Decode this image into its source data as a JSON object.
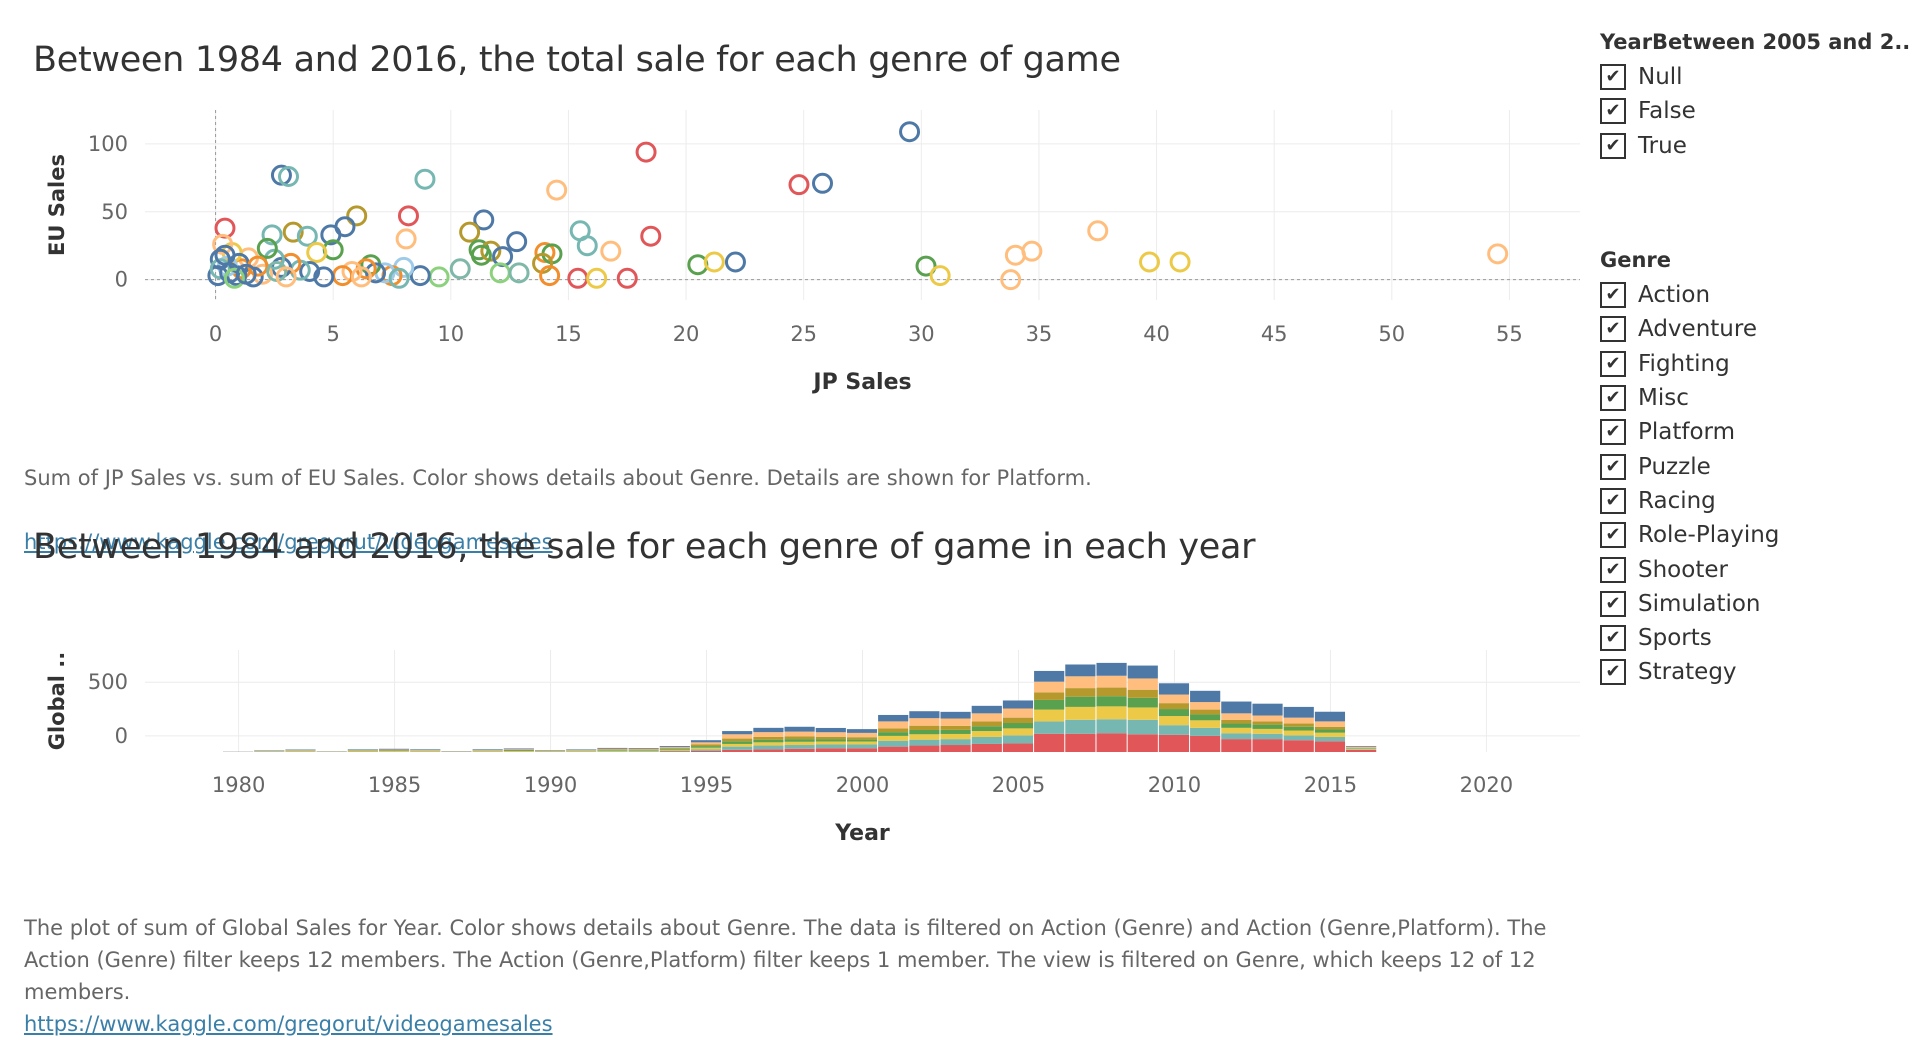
{
  "scatter": {
    "title": "Between 1984 and 2016, the total sale for each genre of game",
    "caption": "Sum of JP Sales vs. sum of EU Sales.  Color shows details about Genre.  Details are shown for Platform.",
    "link": "https://www.kaggle.com/gregorut/videogamesales"
  },
  "bar": {
    "title": "Between 1984 and 2016, the sale for each genre of game in each year",
    "caption": "The plot of sum of Global Sales for Year.  Color shows details about Genre. The data is filtered on Action (Genre) and Action (Genre,Platform). The Action (Genre) filter keeps 12 members. The Action (Genre,Platform) filter keeps 1 member. The view is filtered on Genre, which keeps 12 of 12 members.",
    "link": "https://www.kaggle.com/gregorut/videogamesales"
  },
  "filters": {
    "year": {
      "title": "YearBetween 2005 and 2..",
      "items": [
        "Null",
        "False",
        "True"
      ]
    },
    "genre": {
      "title": "Genre",
      "items": [
        "Action",
        "Adventure",
        "Fighting",
        "Misc",
        "Platform",
        "Puzzle",
        "Racing",
        "Role-Playing",
        "Shooter",
        "Simulation",
        "Sports",
        "Strategy"
      ]
    }
  },
  "colors": {
    "Action": "#e15759",
    "Adventure": "#7fb8a8",
    "Fighting": "#59a14f",
    "Misc": "#edc948",
    "Platform": "#4e79a7",
    "Puzzle": "#a0cbe8",
    "Racing": "#f28e2b",
    "Role-Playing": "#ffbe7d",
    "Shooter": "#3b8f3b",
    "Simulation": "#b6992d",
    "Sports": "#76b7b2",
    "Strategy": "#8cd17d"
  },
  "chart_data": [
    {
      "type": "scatter",
      "xlabel": "JP Sales",
      "ylabel": "EU Sales",
      "xlim": [
        -3,
        58
      ],
      "ylim": [
        -15,
        125
      ],
      "xticks": [
        0,
        5,
        10,
        15,
        20,
        25,
        30,
        35,
        40,
        45,
        50,
        55
      ],
      "yticks": [
        0,
        50,
        100
      ],
      "points": [
        {
          "x": 29.5,
          "y": 109,
          "g": "Platform"
        },
        {
          "x": 18.3,
          "y": 94,
          "g": "Action"
        },
        {
          "x": 24.8,
          "y": 70,
          "g": "Action"
        },
        {
          "x": 25.8,
          "y": 71,
          "g": "Platform"
        },
        {
          "x": 2.8,
          "y": 77,
          "g": "Platform"
        },
        {
          "x": 3.1,
          "y": 76,
          "g": "Sports"
        },
        {
          "x": 8.9,
          "y": 74,
          "g": "Sports"
        },
        {
          "x": 14.5,
          "y": 66,
          "g": "Role-Playing"
        },
        {
          "x": 6.0,
          "y": 47,
          "g": "Simulation"
        },
        {
          "x": 8.2,
          "y": 47,
          "g": "Action"
        },
        {
          "x": 11.4,
          "y": 44,
          "g": "Platform"
        },
        {
          "x": 0.4,
          "y": 38,
          "g": "Action"
        },
        {
          "x": 5.5,
          "y": 39,
          "g": "Platform"
        },
        {
          "x": 4.9,
          "y": 33,
          "g": "Platform"
        },
        {
          "x": 3.3,
          "y": 35,
          "g": "Simulation"
        },
        {
          "x": 2.4,
          "y": 33,
          "g": "Sports"
        },
        {
          "x": 3.9,
          "y": 32,
          "g": "Sports"
        },
        {
          "x": 10.8,
          "y": 35,
          "g": "Simulation"
        },
        {
          "x": 15.5,
          "y": 36,
          "g": "Sports"
        },
        {
          "x": 8.1,
          "y": 30,
          "g": "Role-Playing"
        },
        {
          "x": 18.5,
          "y": 32,
          "g": "Action"
        },
        {
          "x": 37.5,
          "y": 36,
          "g": "Role-Playing"
        },
        {
          "x": 12.8,
          "y": 28,
          "g": "Platform"
        },
        {
          "x": 15.8,
          "y": 25,
          "g": "Sports"
        },
        {
          "x": 16.8,
          "y": 21,
          "g": "Role-Playing"
        },
        {
          "x": 11.2,
          "y": 22,
          "g": "Fighting"
        },
        {
          "x": 11.7,
          "y": 21,
          "g": "Simulation"
        },
        {
          "x": 14.0,
          "y": 20,
          "g": "Racing"
        },
        {
          "x": 14.3,
          "y": 19,
          "g": "Fighting"
        },
        {
          "x": 54.5,
          "y": 19,
          "g": "Role-Playing"
        },
        {
          "x": 34.0,
          "y": 18,
          "g": "Role-Playing"
        },
        {
          "x": 34.7,
          "y": 21,
          "g": "Role-Playing"
        },
        {
          "x": 11.3,
          "y": 18,
          "g": "Fighting"
        },
        {
          "x": 12.2,
          "y": 17,
          "g": "Platform"
        },
        {
          "x": 13.9,
          "y": 12,
          "g": "Simulation"
        },
        {
          "x": 20.5,
          "y": 11,
          "g": "Fighting"
        },
        {
          "x": 21.2,
          "y": 13,
          "g": "Misc"
        },
        {
          "x": 22.1,
          "y": 13,
          "g": "Platform"
        },
        {
          "x": 30.2,
          "y": 10,
          "g": "Fighting"
        },
        {
          "x": 30.8,
          "y": 3,
          "g": "Misc"
        },
        {
          "x": 39.7,
          "y": 13,
          "g": "Misc"
        },
        {
          "x": 41.0,
          "y": 13,
          "g": "Misc"
        },
        {
          "x": 33.8,
          "y": 0,
          "g": "Role-Playing"
        },
        {
          "x": 14.2,
          "y": 3,
          "g": "Racing"
        },
        {
          "x": 15.4,
          "y": 1,
          "g": "Action"
        },
        {
          "x": 16.2,
          "y": 1,
          "g": "Misc"
        },
        {
          "x": 17.5,
          "y": 1,
          "g": "Action"
        },
        {
          "x": 12.1,
          "y": 5,
          "g": "Strategy"
        },
        {
          "x": 12.9,
          "y": 5,
          "g": "Adventure"
        },
        {
          "x": 10.4,
          "y": 8,
          "g": "Adventure"
        },
        {
          "x": 9.5,
          "y": 2,
          "g": "Strategy"
        },
        {
          "x": 8.7,
          "y": 3,
          "g": "Platform"
        },
        {
          "x": 8.0,
          "y": 9,
          "g": "Puzzle"
        },
        {
          "x": 7.5,
          "y": 3,
          "g": "Racing"
        },
        {
          "x": 7.2,
          "y": 5,
          "g": "Puzzle"
        },
        {
          "x": 6.6,
          "y": 11,
          "g": "Fighting"
        },
        {
          "x": 6.8,
          "y": 5,
          "g": "Platform"
        },
        {
          "x": 6.4,
          "y": 8,
          "g": "Racing"
        },
        {
          "x": 5.8,
          "y": 6,
          "g": "Role-Playing"
        },
        {
          "x": 5.4,
          "y": 3,
          "g": "Racing"
        },
        {
          "x": 5.0,
          "y": 22,
          "g": "Fighting"
        },
        {
          "x": 4.6,
          "y": 2,
          "g": "Platform"
        },
        {
          "x": 4.3,
          "y": 20,
          "g": "Misc"
        },
        {
          "x": 4.0,
          "y": 6,
          "g": "Platform"
        },
        {
          "x": 3.6,
          "y": 7,
          "g": "Sports"
        },
        {
          "x": 3.2,
          "y": 12,
          "g": "Racing"
        },
        {
          "x": 2.8,
          "y": 9,
          "g": "Platform"
        },
        {
          "x": 2.5,
          "y": 15,
          "g": "Sports"
        },
        {
          "x": 2.2,
          "y": 23,
          "g": "Fighting"
        },
        {
          "x": 2.0,
          "y": 4,
          "g": "Role-Playing"
        },
        {
          "x": 1.6,
          "y": 2,
          "g": "Platform"
        },
        {
          "x": 1.4,
          "y": 16,
          "g": "Role-Playing"
        },
        {
          "x": 1.1,
          "y": 8,
          "g": "Racing"
        },
        {
          "x": 0.9,
          "y": 3,
          "g": "Platform"
        },
        {
          "x": 0.7,
          "y": 20,
          "g": "Misc"
        },
        {
          "x": 0.5,
          "y": 10,
          "g": "Puzzle"
        },
        {
          "x": 0.3,
          "y": 26,
          "g": "Role-Playing"
        },
        {
          "x": 0.2,
          "y": 15,
          "g": "Platform"
        },
        {
          "x": 0.1,
          "y": 3,
          "g": "Platform"
        },
        {
          "x": 0.2,
          "y": 8,
          "g": "Sports"
        },
        {
          "x": 0.6,
          "y": 5,
          "g": "Platform"
        },
        {
          "x": 1.0,
          "y": 12,
          "g": "Platform"
        },
        {
          "x": 0.4,
          "y": 18,
          "g": "Platform"
        },
        {
          "x": 1.8,
          "y": 10,
          "g": "Racing"
        },
        {
          "x": 2.6,
          "y": 6,
          "g": "Adventure"
        },
        {
          "x": 3.0,
          "y": 2,
          "g": "Role-Playing"
        },
        {
          "x": 0.8,
          "y": 1,
          "g": "Strategy"
        },
        {
          "x": 1.3,
          "y": 4,
          "g": "Platform"
        },
        {
          "x": 7.8,
          "y": 1,
          "g": "Sports"
        },
        {
          "x": 6.2,
          "y": 2,
          "g": "Role-Playing"
        }
      ]
    },
    {
      "type": "bar",
      "stacked": true,
      "xlabel": "Year",
      "ylabel": "Global ..",
      "xlim": [
        1977,
        2023
      ],
      "ylim": [
        -150,
        800
      ],
      "xticks": [
        1980,
        1985,
        1990,
        1995,
        2000,
        2005,
        2010,
        2015,
        2020
      ],
      "yticks": [
        0,
        500
      ],
      "genre_order": [
        "Action",
        "Sports",
        "Misc",
        "Fighting",
        "Simulation",
        "Role-Playing",
        "Platform"
      ],
      "years": [
        1980,
        1981,
        1982,
        1983,
        1984,
        1985,
        1986,
        1987,
        1988,
        1989,
        1990,
        1991,
        1992,
        1993,
        1994,
        1995,
        1996,
        1997,
        1998,
        1999,
        2000,
        2001,
        2002,
        2003,
        2004,
        2005,
        2006,
        2007,
        2008,
        2009,
        2010,
        2011,
        2012,
        2013,
        2014,
        2015,
        2016
      ],
      "series": [
        {
          "name": "Action",
          "values": [
            0,
            1,
            2,
            0,
            0,
            1,
            1,
            1,
            2,
            1,
            0,
            1,
            1,
            2,
            5,
            10,
            20,
            25,
            30,
            35,
            35,
            50,
            60,
            65,
            75,
            80,
            170,
            170,
            175,
            165,
            160,
            150,
            120,
            120,
            110,
            100,
            20
          ]
        },
        {
          "name": "Sports",
          "values": [
            0,
            2,
            3,
            1,
            2,
            2,
            2,
            1,
            2,
            3,
            2,
            3,
            4,
            6,
            8,
            15,
            30,
            35,
            35,
            35,
            35,
            55,
            55,
            55,
            65,
            75,
            115,
            130,
            130,
            135,
            90,
            75,
            55,
            50,
            45,
            40,
            5
          ]
        },
        {
          "name": "Misc",
          "values": [
            1,
            3,
            4,
            1,
            4,
            5,
            4,
            1,
            4,
            5,
            3,
            4,
            7,
            6,
            8,
            15,
            25,
            30,
            30,
            28,
            28,
            45,
            50,
            48,
            55,
            65,
            110,
            120,
            120,
            115,
            85,
            70,
            50,
            45,
            45,
            40,
            5
          ]
        },
        {
          "name": "Fighting",
          "values": [
            0,
            2,
            3,
            1,
            4,
            5,
            4,
            1,
            4,
            5,
            3,
            4,
            6,
            5,
            8,
            15,
            25,
            25,
            25,
            22,
            20,
            35,
            40,
            38,
            45,
            50,
            90,
            95,
            95,
            90,
            65,
            55,
            40,
            40,
            35,
            30,
            5
          ]
        },
        {
          "name": "Simulation",
          "values": [
            0,
            2,
            3,
            1,
            4,
            5,
            4,
            1,
            4,
            5,
            3,
            4,
            6,
            5,
            8,
            15,
            25,
            25,
            25,
            22,
            20,
            35,
            40,
            38,
            45,
            50,
            70,
            80,
            80,
            75,
            55,
            45,
            35,
            30,
            30,
            25,
            5
          ]
        },
        {
          "name": "Role-Playing",
          "values": [
            1,
            2,
            3,
            1,
            4,
            5,
            4,
            1,
            4,
            6,
            3,
            4,
            6,
            6,
            8,
            20,
            40,
            45,
            45,
            42,
            40,
            65,
            70,
            68,
            75,
            85,
            100,
            110,
            110,
            105,
            80,
            70,
            60,
            55,
            55,
            50,
            8
          ]
        },
        {
          "name": "Platform",
          "values": [
            2,
            4,
            5,
            2,
            6,
            7,
            6,
            2,
            6,
            8,
            4,
            5,
            8,
            7,
            10,
            20,
            30,
            40,
            45,
            40,
            35,
            60,
            65,
            62,
            70,
            75,
            100,
            110,
            120,
            120,
            105,
            105,
            110,
            110,
            100,
            90,
            7
          ]
        }
      ]
    }
  ]
}
